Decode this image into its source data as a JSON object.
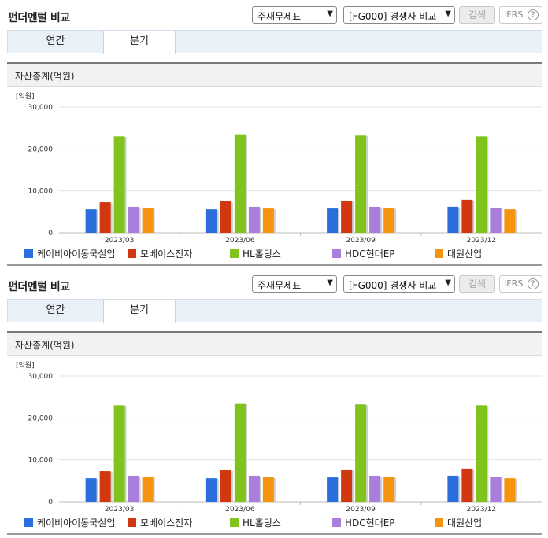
{
  "panels": [
    {
      "title": "펀더멘털 비교",
      "select1": "주재무제표",
      "select2": "[FG000] 경쟁사 비교",
      "search_label": "검색",
      "ifrs_label": "IFRS",
      "help_glyph": "?",
      "tabs": [
        "연간",
        "분기"
      ],
      "active_tab": "분기",
      "metric_title": "자산총계(억원)"
    },
    {
      "title": "펀더멘털 비교",
      "select1": "주재무제표",
      "select2": "[FG000] 경쟁사 비교",
      "search_label": "검색",
      "ifrs_label": "IFRS",
      "help_glyph": "?",
      "tabs": [
        "연간",
        "분기"
      ],
      "active_tab": "분기",
      "metric_title": "자산총계(억원)"
    }
  ],
  "chart_data": [
    {
      "type": "bar",
      "unit_label": "[억원]",
      "categories": [
        "2023/03",
        "2023/06",
        "2023/09",
        "2023/12"
      ],
      "ylim": [
        0,
        30000
      ],
      "yticks": [
        "0",
        "10,000",
        "20,000",
        "30,000"
      ],
      "grid": true,
      "legend": "bottom",
      "series": [
        {
          "name": "케이비아이동국실업",
          "color": "#2a6fdb",
          "values": [
            5600,
            5600,
            5800,
            6200
          ]
        },
        {
          "name": "모베이스전자",
          "color": "#d2380f",
          "values": [
            7300,
            7500,
            7700,
            7900
          ]
        },
        {
          "name": "HL홀딩스",
          "color": "#7fc31c",
          "values": [
            23000,
            23500,
            23200,
            23000
          ]
        },
        {
          "name": "HDC현대EP",
          "color": "#a97fdb",
          "values": [
            6200,
            6200,
            6200,
            6000
          ]
        },
        {
          "name": "대원산업",
          "color": "#f7940f",
          "values": [
            5900,
            5800,
            5900,
            5600
          ]
        }
      ]
    },
    {
      "type": "bar",
      "unit_label": "[억원]",
      "categories": [
        "2023/03",
        "2023/06",
        "2023/09",
        "2023/12"
      ],
      "ylim": [
        0,
        30000
      ],
      "yticks": [
        "0",
        "10,000",
        "20,000",
        "30,000"
      ],
      "grid": true,
      "legend": "bottom",
      "series": [
        {
          "name": "케이비아이동국실업",
          "color": "#2a6fdb",
          "values": [
            5600,
            5600,
            5800,
            6200
          ]
        },
        {
          "name": "모베이스전자",
          "color": "#d2380f",
          "values": [
            7300,
            7500,
            7700,
            7900
          ]
        },
        {
          "name": "HL홀딩스",
          "color": "#7fc31c",
          "values": [
            23000,
            23500,
            23200,
            23000
          ]
        },
        {
          "name": "HDC현대EP",
          "color": "#a97fdb",
          "values": [
            6200,
            6200,
            6200,
            6000
          ]
        },
        {
          "name": "대원산업",
          "color": "#f7940f",
          "values": [
            5900,
            5800,
            5900,
            5600
          ]
        }
      ]
    }
  ]
}
